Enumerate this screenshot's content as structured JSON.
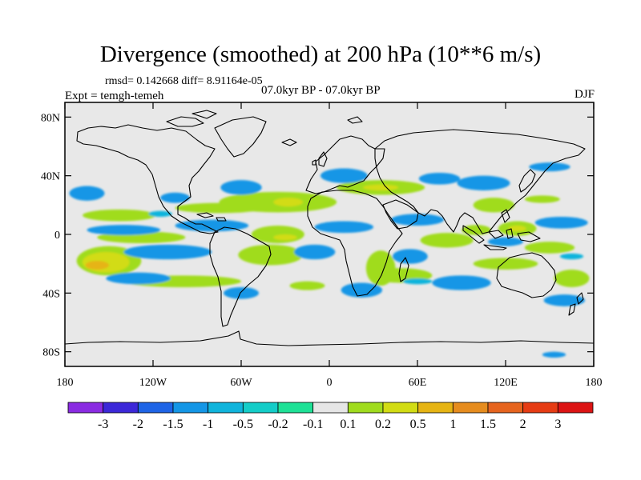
{
  "title": "Divergence (smoothed) at 200 hPa (10**6 m/s)",
  "stats": "rmsd= 0.142668 diff= 8.91164e-05",
  "expt": "Expt = temgh-temeh",
  "period": "07.0kyr BP - 07.0kyr BP",
  "season": "DJF",
  "map": {
    "background_color": "#e8e8e8",
    "lat_range": [
      -90,
      90
    ],
    "lon_range": [
      -180,
      180
    ],
    "lat_ticks": [
      {
        "value": 80,
        "label": "80N"
      },
      {
        "value": 40,
        "label": "40N"
      },
      {
        "value": 0,
        "label": "0"
      },
      {
        "value": -40,
        "label": "40S"
      },
      {
        "value": -80,
        "label": "80S"
      }
    ],
    "lon_ticks": [
      {
        "value": -180,
        "label": "180"
      },
      {
        "value": -120,
        "label": "120W"
      },
      {
        "value": -60,
        "label": "60W"
      },
      {
        "value": 0,
        "label": "0"
      },
      {
        "value": 60,
        "label": "60E"
      },
      {
        "value": 120,
        "label": "120E"
      },
      {
        "value": 180,
        "label": "180"
      }
    ]
  },
  "chart_data": {
    "type": "heatmap",
    "title": "Divergence (smoothed) at 200 hPa (10**6 m/s)",
    "units": "10**6 m/s",
    "variable": "divergence difference",
    "levels": [
      -3,
      -2,
      -1.5,
      -1,
      -0.5,
      -0.2,
      -0.1,
      0.1,
      0.2,
      0.5,
      1,
      1.5,
      2,
      3
    ],
    "level_labels": [
      "-3",
      "-2",
      "-1.5",
      "-1",
      "-0.5",
      "-0.2",
      "-0.1",
      "0.1",
      "0.2",
      "0.5",
      "1",
      "1.5",
      "2",
      "3"
    ],
    "colors": [
      "#8a2be2",
      "#3c28d8",
      "#1e64e6",
      "#1496e6",
      "#10b4dc",
      "#14cdc8",
      "#1ee196",
      "#e6e6e6",
      "#a0dc1e",
      "#d2dc14",
      "#e6b414",
      "#e68c1e",
      "#e6641e",
      "#e63c14",
      "#dc1414"
    ],
    "blobs": [
      {
        "lon": -143,
        "lat": 13,
        "rlon": 25,
        "rlat": 4,
        "color": "#a0dc1e"
      },
      {
        "lon": -75,
        "lat": 18,
        "rlon": 30,
        "rlat": 3.5,
        "color": "#a0dc1e"
      },
      {
        "lon": -35,
        "lat": 22,
        "rlon": 40,
        "rlat": 7,
        "color": "#a0dc1e"
      },
      {
        "lon": -28,
        "lat": 22,
        "rlon": 10,
        "rlat": 3,
        "color": "#d2dc14"
      },
      {
        "lon": 35,
        "lat": 32,
        "rlon": 30,
        "rlat": 5,
        "color": "#a0dc1e"
      },
      {
        "lon": 35,
        "lat": 32,
        "rlon": 12,
        "rlat": 2,
        "color": "#d2dc14"
      },
      {
        "lon": 112,
        "lat": 20,
        "rlon": 14,
        "rlat": 5,
        "color": "#a0dc1e"
      },
      {
        "lon": 145,
        "lat": 24,
        "rlon": 12,
        "rlat": 2.5,
        "color": "#a0dc1e"
      },
      {
        "lon": 100,
        "lat": 3,
        "rlon": 10,
        "rlat": 3.5,
        "color": "#a0dc1e"
      },
      {
        "lon": 128,
        "lat": 4,
        "rlon": 13,
        "rlat": 5,
        "color": "#a0dc1e"
      },
      {
        "lon": 128,
        "lat": 4,
        "rlon": 6,
        "rlat": 2,
        "color": "#d2dc14"
      },
      {
        "lon": -128,
        "lat": -2,
        "rlon": 30,
        "rlat": 4,
        "color": "#a0dc1e"
      },
      {
        "lon": -35,
        "lat": 0,
        "rlon": 18,
        "rlat": 6,
        "color": "#a0dc1e"
      },
      {
        "lon": -30,
        "lat": -2,
        "rlon": 8,
        "rlat": 2,
        "color": "#d2dc14"
      },
      {
        "lon": 80,
        "lat": -4,
        "rlon": 18,
        "rlat": 5,
        "color": "#a0dc1e"
      },
      {
        "lon": 150,
        "lat": -9,
        "rlon": 17,
        "rlat": 4,
        "color": "#a0dc1e"
      },
      {
        "lon": -150,
        "lat": -18,
        "rlon": 22,
        "rlat": 10,
        "color": "#a0dc1e"
      },
      {
        "lon": -152,
        "lat": -19,
        "rlon": 16,
        "rlat": 7,
        "color": "#d2dc14"
      },
      {
        "lon": -158,
        "lat": -21,
        "rlon": 8,
        "rlat": 3,
        "color": "#e6b414"
      },
      {
        "lon": -100,
        "lat": -32,
        "rlon": 40,
        "rlat": 4,
        "color": "#a0dc1e"
      },
      {
        "lon": -40,
        "lat": -14,
        "rlon": 22,
        "rlat": 7,
        "color": "#a0dc1e"
      },
      {
        "lon": 35,
        "lat": -23,
        "rlon": 10,
        "rlat": 12,
        "color": "#a0dc1e"
      },
      {
        "lon": 48,
        "lat": -28,
        "rlon": 22,
        "rlat": 5,
        "color": "#a0dc1e"
      },
      {
        "lon": 120,
        "lat": -20,
        "rlon": 22,
        "rlat": 4,
        "color": "#a0dc1e"
      },
      {
        "lon": 165,
        "lat": -30,
        "rlon": 12,
        "rlat": 6,
        "color": "#a0dc1e"
      },
      {
        "lon": -15,
        "lat": -35,
        "rlon": 12,
        "rlat": 3,
        "color": "#a0dc1e"
      },
      {
        "lon": -165,
        "lat": 28,
        "rlon": 12,
        "rlat": 5,
        "color": "#1496e6"
      },
      {
        "lon": -105,
        "lat": 25,
        "rlon": 10,
        "rlat": 3.5,
        "color": "#1496e6"
      },
      {
        "lon": -60,
        "lat": 32,
        "rlon": 14,
        "rlat": 5,
        "color": "#1496e6"
      },
      {
        "lon": 10,
        "lat": 40,
        "rlon": 16,
        "rlat": 5,
        "color": "#1496e6"
      },
      {
        "lon": 75,
        "lat": 38,
        "rlon": 14,
        "rlat": 4,
        "color": "#1496e6"
      },
      {
        "lon": 105,
        "lat": 35,
        "rlon": 18,
        "rlat": 5,
        "color": "#1496e6"
      },
      {
        "lon": 150,
        "lat": 46,
        "rlon": 14,
        "rlat": 3,
        "color": "#1496e6"
      },
      {
        "lon": -140,
        "lat": 3,
        "rlon": 25,
        "rlat": 3.5,
        "color": "#1496e6"
      },
      {
        "lon": -80,
        "lat": 6,
        "rlon": 25,
        "rlat": 4,
        "color": "#1496e6"
      },
      {
        "lon": 10,
        "lat": 5,
        "rlon": 20,
        "rlat": 4,
        "color": "#1496e6"
      },
      {
        "lon": 60,
        "lat": 10,
        "rlon": 18,
        "rlat": 4,
        "color": "#1496e6"
      },
      {
        "lon": 158,
        "lat": 8,
        "rlon": 18,
        "rlat": 4,
        "color": "#1496e6"
      },
      {
        "lon": -110,
        "lat": -12,
        "rlon": 30,
        "rlat": 5,
        "color": "#1496e6"
      },
      {
        "lon": -10,
        "lat": -12,
        "rlon": 14,
        "rlat": 5,
        "color": "#1496e6"
      },
      {
        "lon": 55,
        "lat": -15,
        "rlon": 12,
        "rlat": 5,
        "color": "#1496e6"
      },
      {
        "lon": 120,
        "lat": -5,
        "rlon": 12,
        "rlat": 3,
        "color": "#1496e6"
      },
      {
        "lon": -130,
        "lat": -30,
        "rlon": 22,
        "rlat": 4,
        "color": "#1496e6"
      },
      {
        "lon": -60,
        "lat": -40,
        "rlon": 12,
        "rlat": 4,
        "color": "#1496e6"
      },
      {
        "lon": 22,
        "lat": -38,
        "rlon": 14,
        "rlat": 5,
        "color": "#1496e6"
      },
      {
        "lon": 90,
        "lat": -33,
        "rlon": 20,
        "rlat": 5,
        "color": "#1496e6"
      },
      {
        "lon": 160,
        "lat": -45,
        "rlon": 14,
        "rlat": 4,
        "color": "#1496e6"
      },
      {
        "lon": 153,
        "lat": -82,
        "rlon": 8,
        "rlat": 2,
        "color": "#1496e6"
      },
      {
        "lon": -115,
        "lat": 14,
        "rlon": 8,
        "rlat": 2,
        "color": "#10b4dc"
      },
      {
        "lon": 60,
        "lat": -32,
        "rlon": 10,
        "rlat": 2,
        "color": "#10b4dc"
      },
      {
        "lon": 165,
        "lat": -15,
        "rlon": 8,
        "rlat": 2,
        "color": "#10b4dc"
      }
    ]
  }
}
